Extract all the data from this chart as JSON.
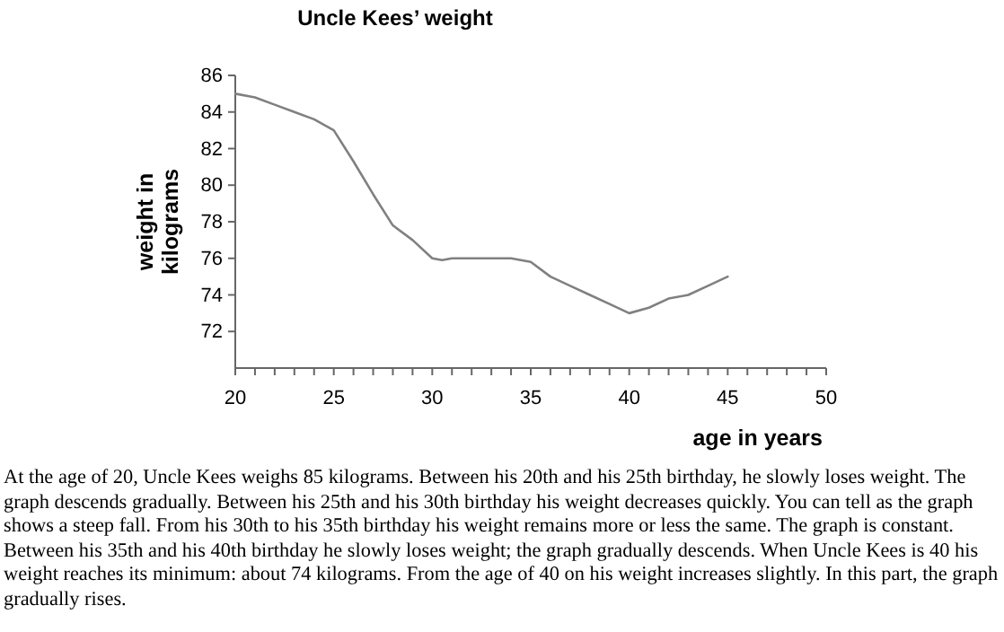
{
  "chart_data": {
    "type": "line",
    "title": "Uncle Kees’ weight",
    "xlabel": "age in years",
    "ylabel": "weight in\nkilograms",
    "x": [
      20,
      21,
      22,
      23,
      24,
      25,
      26,
      27,
      28,
      29,
      30,
      30.5,
      31,
      32,
      33,
      34,
      35,
      36,
      37,
      38,
      39,
      40,
      41,
      42,
      43,
      44,
      45
    ],
    "series": [
      {
        "color": "#808080",
        "values": [
          85,
          84.8,
          84.4,
          84,
          83.6,
          83,
          81.3,
          79.5,
          77.8,
          77,
          76,
          75.9,
          76,
          76,
          76,
          76,
          75.8,
          75,
          74.5,
          74,
          73.5,
          73,
          73.3,
          73.8,
          74,
          74.5,
          75
        ]
      }
    ],
    "xlim": [
      20,
      50
    ],
    "xticks": [
      20,
      {
        "value": 21,
        "label": null
      },
      {
        "value": 22,
        "label": null
      },
      {
        "value": 23,
        "label": null
      },
      {
        "value": 24,
        "label": null
      },
      25,
      {
        "value": 26,
        "label": null
      },
      {
        "value": 27,
        "label": null
      },
      {
        "value": 28,
        "label": null
      },
      {
        "value": 29,
        "label": null
      },
      30,
      {
        "value": 31,
        "label": null
      },
      {
        "value": 32,
        "label": null
      },
      {
        "value": 33,
        "label": null
      },
      {
        "value": 34,
        "label": null
      },
      35,
      {
        "value": 36,
        "label": null
      },
      {
        "value": 37,
        "label": null
      },
      {
        "value": 38,
        "label": null
      },
      {
        "value": 39,
        "label": null
      },
      40,
      {
        "value": 41,
        "label": null
      },
      {
        "value": 42,
        "label": null
      },
      {
        "value": 43,
        "label": null
      },
      {
        "value": 44,
        "label": null
      },
      45,
      {
        "value": 46,
        "label": null
      },
      {
        "value": 47,
        "label": null
      },
      {
        "value": 48,
        "label": null
      },
      {
        "value": 49,
        "label": null
      },
      50
    ],
    "ylim": [
      70,
      86
    ],
    "yticks": [
      72,
      74,
      76,
      78,
      80,
      82,
      84,
      86
    ],
    "grid": false,
    "marker": "none",
    "line_style": "solid",
    "annotations": [
      "At the age of 20, Uncle Kees weighs 85 kilograms. Between his 20th and his 25th birthday, he slowly loses weight. The graph descends gradually. Between his 25th and his 30th birthday his weight decreases quickly. You can tell as the graph shows a steep fall. From his 30th to his 35th birthday his weight remains more or less the same. The graph is constant. Between his 35th and his 40th birthday he slowly loses weight; the graph gradually descends. When Uncle Kees is 40 his weight reaches its minimum: about 74 kilograms. From the age of 40 on his weight increases slightly. In this part, the graph gradually rises."
    ]
  }
}
